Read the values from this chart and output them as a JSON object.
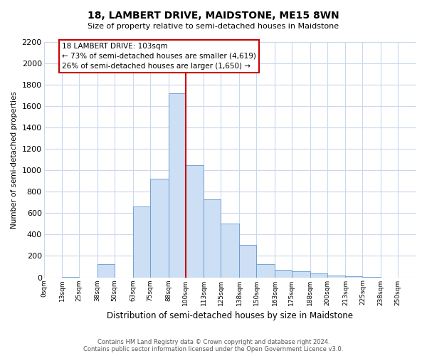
{
  "title": "18, LAMBERT DRIVE, MAIDSTONE, ME15 8WN",
  "subtitle": "Size of property relative to semi-detached houses in Maidstone",
  "xlabel": "Distribution of semi-detached houses by size in Maidstone",
  "ylabel": "Number of semi-detached properties",
  "bar_labels": [
    "0sqm",
    "13sqm",
    "25sqm",
    "38sqm",
    "50sqm",
    "63sqm",
    "75sqm",
    "88sqm",
    "100sqm",
    "113sqm",
    "125sqm",
    "138sqm",
    "150sqm",
    "163sqm",
    "175sqm",
    "188sqm",
    "200sqm",
    "213sqm",
    "225sqm",
    "238sqm",
    "250sqm"
  ],
  "bar_values": [
    0,
    5,
    0,
    120,
    0,
    660,
    920,
    1720,
    1050,
    730,
    500,
    305,
    120,
    70,
    55,
    35,
    20,
    10,
    5,
    0,
    0
  ],
  "bar_edges": [
    0,
    13,
    25,
    38,
    50,
    63,
    75,
    88,
    100,
    113,
    125,
    138,
    150,
    163,
    175,
    188,
    200,
    213,
    225,
    238,
    250,
    263
  ],
  "bar_color": "#ccdff5",
  "bar_edgecolor": "#6699cc",
  "vline_x": 100,
  "vline_color": "#cc0000",
  "annotation_title": "18 LAMBERT DRIVE: 103sqm",
  "annotation_line1": "← 73% of semi-detached houses are smaller (4,619)",
  "annotation_line2": "26% of semi-detached houses are larger (1,650) →",
  "annotation_box_color": "#ffffff",
  "annotation_box_edgecolor": "#cc0000",
  "ylim": [
    0,
    2200
  ],
  "yticks": [
    0,
    200,
    400,
    600,
    800,
    1000,
    1200,
    1400,
    1600,
    1800,
    2000,
    2200
  ],
  "footer_line1": "Contains HM Land Registry data © Crown copyright and database right 2024.",
  "footer_line2": "Contains public sector information licensed under the Open Government Licence v3.0.",
  "bg_color": "#ffffff",
  "grid_color": "#c8d8ee"
}
